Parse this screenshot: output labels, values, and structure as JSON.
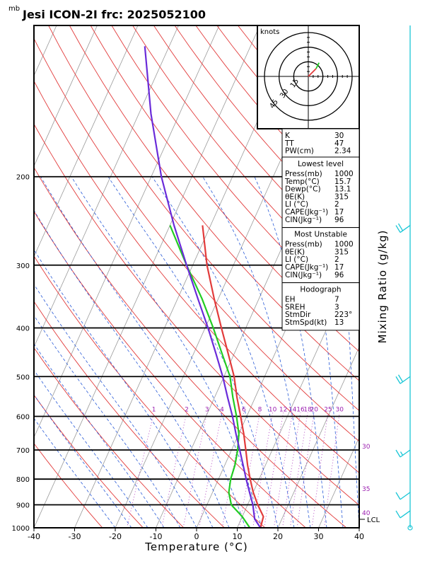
{
  "header": {
    "unit": "mb",
    "title": "Jesi ICON-2I frc: 2025052100"
  },
  "chart_data": {
    "type": "line",
    "xlabel": "Temperature (°C)",
    "ylabel": "Mixing Ratio (g/kg)",
    "xlim": [
      -40,
      40
    ],
    "ylim_pressure": [
      1000,
      100
    ],
    "x_ticks": [
      "-40",
      "-30",
      "-20",
      "-10",
      "0",
      "10",
      "20",
      "30",
      "40"
    ],
    "pressure_ticks": [
      "200",
      "300",
      "400",
      "500",
      "600",
      "700",
      "800",
      "900",
      "1000"
    ],
    "mixing_ratio_labels": [
      "1",
      "2",
      "3",
      "4",
      "6",
      "8",
      "10",
      "12",
      "14",
      "16",
      "18",
      "20",
      "25",
      "30"
    ],
    "theta_e_labels": [
      "30",
      "35",
      "40"
    ],
    "lcl_label": "LCL",
    "series": [
      {
        "name": "Temperature",
        "color": "#e23b3b",
        "points": [
          [
            1000,
            15.7
          ],
          [
            950,
            15.2
          ],
          [
            900,
            12.5
          ],
          [
            850,
            10.0
          ],
          [
            800,
            7.8
          ],
          [
            750,
            5.6
          ],
          [
            700,
            3.5
          ],
          [
            650,
            1.2
          ],
          [
            600,
            -1.5
          ],
          [
            550,
            -4.5
          ],
          [
            500,
            -7.5
          ],
          [
            450,
            -11.5
          ],
          [
            400,
            -16.0
          ],
          [
            350,
            -21.0
          ],
          [
            300,
            -26.5
          ],
          [
            250,
            -32.0
          ]
        ]
      },
      {
        "name": "Dewpoint",
        "color": "#22cc22",
        "points": [
          [
            1000,
            13.1
          ],
          [
            950,
            10.0
          ],
          [
            900,
            6.0
          ],
          [
            850,
            4.0
          ],
          [
            800,
            3.0
          ],
          [
            750,
            2.5
          ],
          [
            700,
            1.5
          ],
          [
            650,
            0.0
          ],
          [
            600,
            -2.5
          ],
          [
            550,
            -5.5
          ],
          [
            500,
            -8.5
          ],
          [
            450,
            -13.0
          ],
          [
            400,
            -18.0
          ],
          [
            350,
            -24.0
          ],
          [
            300,
            -31.5
          ],
          [
            250,
            -40.0
          ]
        ]
      },
      {
        "name": "Parcel",
        "color": "#6a2bd9",
        "points": [
          [
            1000,
            15.7
          ],
          [
            960,
            13.3
          ],
          [
            900,
            11.3
          ],
          [
            850,
            9.1
          ],
          [
            800,
            6.8
          ],
          [
            750,
            4.5
          ],
          [
            700,
            2.0
          ],
          [
            650,
            -0.7
          ],
          [
            600,
            -3.5
          ],
          [
            550,
            -6.8
          ],
          [
            500,
            -10.3
          ],
          [
            450,
            -14.5
          ],
          [
            400,
            -19.3
          ],
          [
            350,
            -25.0
          ],
          [
            300,
            -31.5
          ],
          [
            250,
            -39.0
          ],
          [
            200,
            -47.5
          ],
          [
            150,
            -57.0
          ],
          [
            110,
            -66.0
          ]
        ]
      }
    ],
    "wind_barbs": [
      {
        "p": 1000,
        "speed_kt": 0
      },
      {
        "p": 925,
        "speed_kt": 10
      },
      {
        "p": 850,
        "speed_kt": 10
      },
      {
        "p": 700,
        "speed_kt": 15
      },
      {
        "p": 500,
        "speed_kt": 20
      },
      {
        "p": 250,
        "speed_kt": 20
      }
    ],
    "hodograph": {
      "unit_label": "knots",
      "ring_labels": [
        "15",
        "30",
        "45"
      ],
      "ring_values_kt": [
        15,
        30,
        45
      ],
      "trace_red": [
        [
          0,
          0
        ],
        [
          4,
          4
        ],
        [
          8,
          8
        ]
      ],
      "trace_green": [
        [
          8,
          8
        ],
        [
          10,
          12
        ],
        [
          11,
          14
        ]
      ]
    }
  },
  "indices": {
    "top": [
      {
        "label": "K",
        "value": "30"
      },
      {
        "label": "TT",
        "value": "47"
      },
      {
        "label": "PW(cm)",
        "value": "2.34"
      }
    ],
    "lowest_level": {
      "heading": "Lowest level",
      "rows": [
        {
          "label": "Press(mb)",
          "value": "1000"
        },
        {
          "label": "Temp(°C)",
          "value": "15.7"
        },
        {
          "label": "Dewp(°C)",
          "value": "13.1"
        },
        {
          "label": "θE(K)",
          "value": "315"
        },
        {
          "label": "LI (°C)",
          "value": "2"
        },
        {
          "label": "CAPE(Jkg⁻¹)",
          "value": "17"
        },
        {
          "label": "CIN(Jkg⁻¹)",
          "value": "96"
        }
      ]
    },
    "most_unstable": {
      "heading": "Most Unstable",
      "rows": [
        {
          "label": "Press(mb)",
          "value": "1000"
        },
        {
          "label": "θE(K)",
          "value": "315"
        },
        {
          "label": "LI (°C)",
          "value": "2"
        },
        {
          "label": "CAPE(Jkg⁻¹)",
          "value": "17"
        },
        {
          "label": "CIN(Jkg⁻¹)",
          "value": "96"
        }
      ]
    },
    "hodograph_box": {
      "heading": "Hodograph",
      "rows": [
        {
          "label": "EH",
          "value": "7"
        },
        {
          "label": "SREH",
          "value": "3"
        },
        {
          "label": "StmDir",
          "value": "223°"
        },
        {
          "label": "StmSpd(kt)",
          "value": "13"
        }
      ]
    }
  },
  "colors": {
    "isotherm": "#9a9a9a",
    "dry_adiabat": "#e23b3b",
    "moist_adiabat": "#2a5bd7",
    "mixing_ratio": "#b040c0",
    "mr_label": "#9b1fb0",
    "barb": "#19c6d6"
  }
}
